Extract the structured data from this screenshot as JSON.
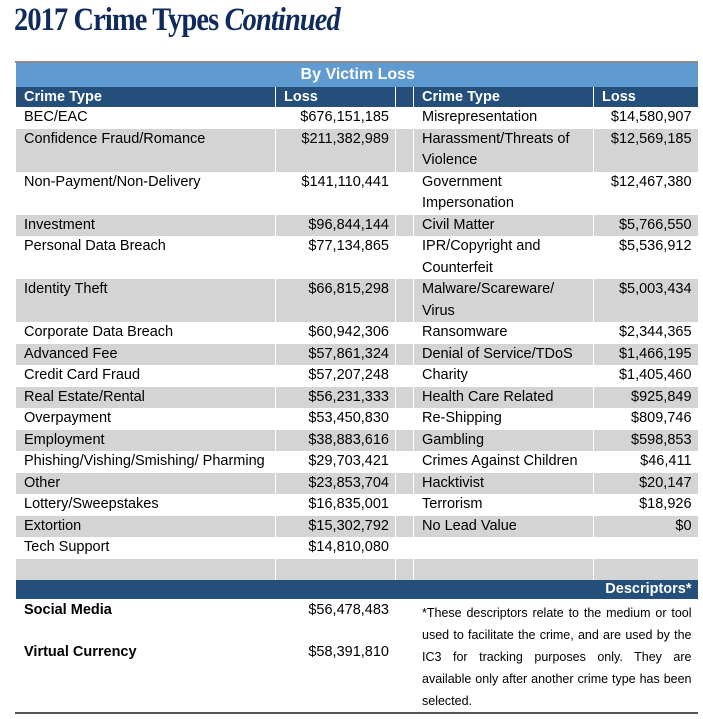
{
  "title": {
    "main": "2017 Crime Types",
    "italic": "Continued"
  },
  "table": {
    "band": "By Victim Loss",
    "headers": [
      "Crime Type",
      "Loss",
      "Crime Type",
      "Loss"
    ],
    "rows": [
      [
        "BEC/EAC",
        "$676,151,185",
        "Misrepresentation",
        "$14,580,907"
      ],
      [
        "Confidence Fraud/Romance",
        "$211,382,989",
        "Harassment/Threats of Violence",
        "$12,569,185"
      ],
      [
        "Non-Payment/Non-Delivery",
        "$141,110,441",
        "Government Impersonation",
        "$12,467,380"
      ],
      [
        "Investment",
        "$96,844,144",
        "Civil Matter",
        "$5,766,550"
      ],
      [
        "Personal Data Breach",
        "$77,134,865",
        "IPR/Copyright and Counterfeit",
        "$5,536,912"
      ],
      [
        "Identity Theft",
        "$66,815,298",
        "Malware/Scareware/ Virus",
        "$5,003,434"
      ],
      [
        "Corporate Data Breach",
        "$60,942,306",
        "Ransomware",
        "$2,344,365"
      ],
      [
        "Advanced Fee",
        "$57,861,324",
        "Denial of Service/TDoS",
        "$1,466,195"
      ],
      [
        "Credit Card Fraud",
        "$57,207,248",
        "Charity",
        "$1,405,460"
      ],
      [
        "Real Estate/Rental",
        "$56,231,333",
        "Health Care Related",
        "$925,849"
      ],
      [
        "Overpayment",
        "$53,450,830",
        "Re-Shipping",
        "$809,746"
      ],
      [
        "Employment",
        "$38,883,616",
        "Gambling",
        "$598,853"
      ],
      [
        "Phishing/Vishing/Smishing/ Pharming",
        "$29,703,421",
        "Crimes Against Children",
        "$46,411"
      ],
      [
        "Other",
        "$23,853,704",
        "Hacktivist",
        "$20,147"
      ],
      [
        "Lottery/Sweepstakes",
        "$16,835,001",
        "Terrorism",
        "$18,926"
      ],
      [
        "Extortion",
        "$15,302,792",
        "No Lead Value",
        "$0"
      ],
      [
        "Tech Support",
        "$14,810,080",
        "",
        ""
      ]
    ],
    "descriptors_header": "Descriptors*",
    "descriptors": [
      [
        "Social Media",
        "$56,478,483"
      ],
      [
        "Virtual Currency",
        "$58,391,810"
      ]
    ],
    "note": "*These descriptors relate to the medium or tool used to facilitate the crime, and are used by the IC3 for tracking purposes only.  They are available only after another crime type has been selected."
  }
}
